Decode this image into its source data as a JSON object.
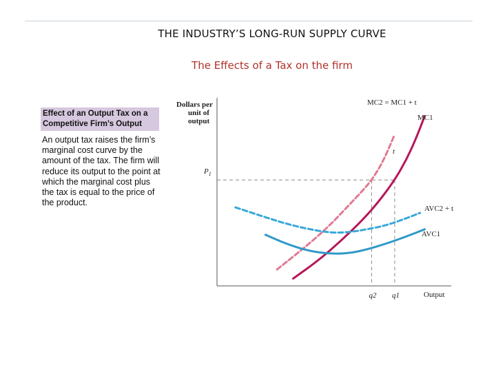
{
  "slide": {
    "title": "THE INDUSTRY’S LONG-RUN SUPPLY CURVE",
    "subtitle": "The Effects of a Tax on the firm",
    "box_heading": "Effect of an Output Tax on a Competitive Firm’s Output",
    "box_body": "An output tax raises the firm’s marginal cost curve by the amount of the tax. The firm will reduce its output to the point at which the marginal cost plus the tax is equal to the price of the product."
  },
  "colors": {
    "mc": "#b5175a",
    "mc_tax": "#e07a93",
    "avc": "#2f98c8",
    "avc_tax": "#37a8d8",
    "axis": "#555555",
    "guide": "#888888"
  },
  "chart_data": {
    "type": "line",
    "title": "",
    "ylabel": "Dollars per unit of output",
    "xlabel": "Output",
    "xlim": [
      0,
      10
    ],
    "ylim": [
      0,
      10
    ],
    "price_label": "P1",
    "tax_label": "t",
    "x_markers": [
      {
        "label": "q2",
        "x": 6.7
      },
      {
        "label": "q1",
        "x": 7.7
      }
    ],
    "price_level": 5.8,
    "series": [
      {
        "name": "MC1",
        "label": "MC1",
        "style": "solid",
        "x": [
          3.3,
          4.4,
          5.4,
          6.3,
          7.0,
          7.7,
          8.2,
          8.6,
          9.0
        ],
        "y": [
          0.4,
          1.4,
          2.5,
          3.6,
          4.6,
          5.8,
          6.9,
          8.0,
          9.3
        ]
      },
      {
        "name": "MC2 = MC1 + t",
        "label": "MC2 = MC1 + t",
        "style": "dashed",
        "x": [
          2.6,
          3.7,
          4.8,
          5.7,
          6.3,
          6.7,
          7.1,
          7.4,
          7.7
        ],
        "y": [
          0.9,
          2.0,
          3.2,
          4.4,
          5.2,
          5.8,
          6.6,
          7.4,
          8.3
        ]
      },
      {
        "name": "AVC1",
        "label": "AVC1",
        "style": "solid",
        "x": [
          2.1,
          3.0,
          4.0,
          5.0,
          5.8,
          6.5,
          7.3,
          8.2,
          9.0
        ],
        "y": [
          2.8,
          2.3,
          1.9,
          1.75,
          1.8,
          2.0,
          2.3,
          2.7,
          3.1
        ]
      },
      {
        "name": "AVC2 + t",
        "label": "AVC2 + t",
        "style": "dashed",
        "x": [
          0.8,
          2.0,
          3.0,
          4.0,
          5.0,
          5.8,
          6.5,
          7.3,
          8.2,
          8.8
        ],
        "y": [
          4.3,
          3.8,
          3.4,
          3.1,
          2.9,
          2.95,
          3.1,
          3.3,
          3.7,
          4.0
        ]
      }
    ]
  }
}
